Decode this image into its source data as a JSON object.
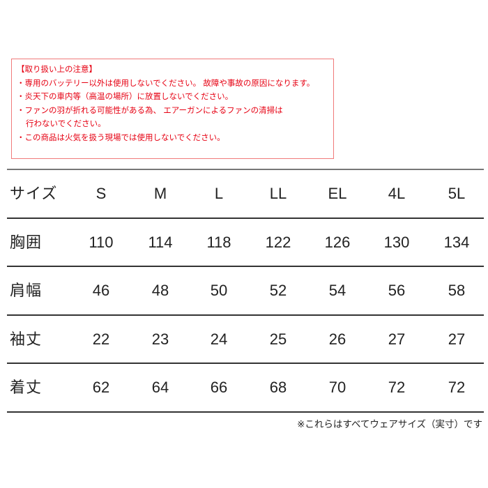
{
  "notice": {
    "title": "【取り扱い上の注意】",
    "lines": [
      "・専用のバッテリー以外は使用しないでください。 故障や事故の原因になります。",
      "・炎天下の車内等（高温の場所）に放置しないでください。",
      "・ファンの羽が折れる可能性がある為、 エアーガンによるファンの清掃は",
      "行わないでください。",
      "・この商品は火気を扱う現場では使用しないでください。"
    ],
    "text_color": "#e60012",
    "border_color": "#f07a7a"
  },
  "size_table": {
    "header_label": "サイズ",
    "sizes": [
      "S",
      "M",
      "L",
      "LL",
      "EL",
      "4L",
      "5L"
    ],
    "rows": [
      {
        "label": "胸囲",
        "values": [
          "110",
          "114",
          "118",
          "122",
          "126",
          "130",
          "134"
        ]
      },
      {
        "label": "肩幅",
        "values": [
          "46",
          "48",
          "50",
          "52",
          "54",
          "56",
          "58"
        ]
      },
      {
        "label": "袖丈",
        "values": [
          "22",
          "23",
          "24",
          "25",
          "26",
          "27",
          "27"
        ]
      },
      {
        "label": "着丈",
        "values": [
          "62",
          "64",
          "66",
          "68",
          "70",
          "72",
          "72"
        ]
      }
    ]
  },
  "footnote": "※これらはすべてウェアサイズ（実寸）です"
}
